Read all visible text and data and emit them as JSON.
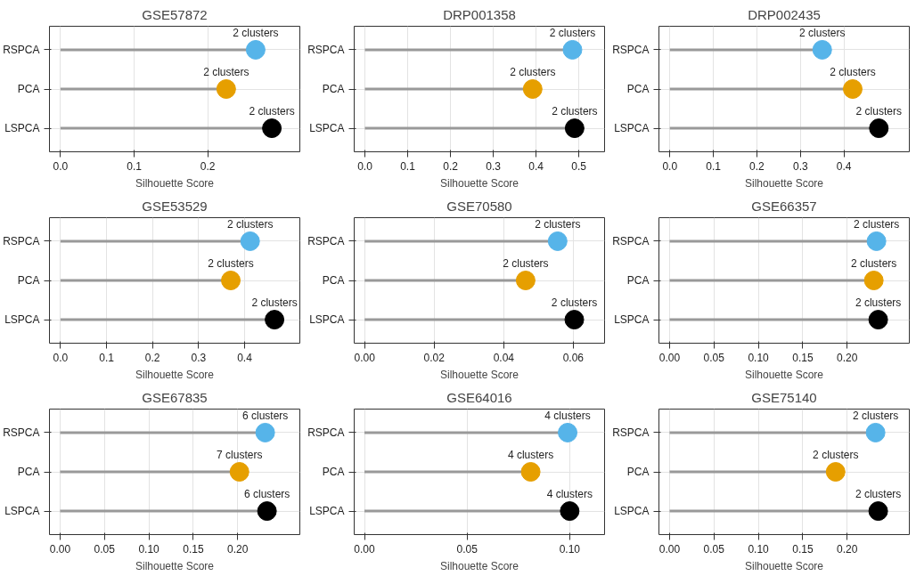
{
  "chart_data": [
    {
      "type": "lollipop",
      "orientation": "horizontal",
      "title": "GSE57872",
      "xlabel": "Silhouette Score",
      "categories": [
        "RSPCA",
        "PCA",
        "LSPCA"
      ],
      "values": [
        0.265,
        0.225,
        0.287
      ],
      "colors": [
        "#56b4e9",
        "#e69f00",
        "#000000"
      ],
      "annotations": [
        {
          "text": "2 clusters",
          "x": 0.265,
          "y": "RSPCA"
        },
        {
          "text": "2 clusters",
          "x": 0.225,
          "y": "PCA"
        },
        {
          "text": "2 clusters",
          "x": 0.287,
          "y": "LSPCA"
        }
      ],
      "xlim": [
        -0.015,
        0.325
      ],
      "xticks": [
        {
          "value": 0,
          "label": "0.0"
        },
        {
          "value": 0.1,
          "label": "0.1"
        },
        {
          "value": 0.2,
          "label": "0.2"
        }
      ],
      "grid": true
    },
    {
      "type": "lollipop",
      "orientation": "horizontal",
      "title": "DRP001358",
      "xlabel": "Silhouette Score",
      "categories": [
        "RSPCA",
        "PCA",
        "LSPCA"
      ],
      "values": [
        0.485,
        0.392,
        0.49
      ],
      "colors": [
        "#56b4e9",
        "#e69f00",
        "#000000"
      ],
      "annotations": [
        {
          "text": "2 clusters",
          "x": 0.485,
          "y": "RSPCA"
        },
        {
          "text": "2 clusters",
          "x": 0.392,
          "y": "PCA"
        },
        {
          "text": "2 clusters",
          "x": 0.49,
          "y": "LSPCA"
        }
      ],
      "xlim": [
        -0.025,
        0.56
      ],
      "xticks": [
        {
          "value": 0,
          "label": "0.0"
        },
        {
          "value": 0.1,
          "label": "0.1"
        },
        {
          "value": 0.2,
          "label": "0.2"
        },
        {
          "value": 0.3,
          "label": "0.3"
        },
        {
          "value": 0.4,
          "label": "0.4"
        },
        {
          "value": 0.5,
          "label": "0.5"
        }
      ],
      "grid": true
    },
    {
      "type": "lollipop",
      "orientation": "horizontal",
      "title": "DRP002435",
      "xlabel": "Silhouette Score",
      "categories": [
        "RSPCA",
        "PCA",
        "LSPCA"
      ],
      "values": [
        0.35,
        0.42,
        0.48
      ],
      "colors": [
        "#56b4e9",
        "#e69f00",
        "#000000"
      ],
      "annotations": [
        {
          "text": "2 clusters",
          "x": 0.35,
          "y": "RSPCA"
        },
        {
          "text": "2 clusters",
          "x": 0.42,
          "y": "PCA"
        },
        {
          "text": "2 clusters",
          "x": 0.48,
          "y": "LSPCA"
        }
      ],
      "xlim": [
        -0.025,
        0.55
      ],
      "xticks": [
        {
          "value": 0,
          "label": "0.0"
        },
        {
          "value": 0.1,
          "label": "0.1"
        },
        {
          "value": 0.2,
          "label": "0.2"
        },
        {
          "value": 0.3,
          "label": "0.3"
        },
        {
          "value": 0.4,
          "label": "0.4"
        }
      ],
      "grid": true
    },
    {
      "type": "lollipop",
      "orientation": "horizontal",
      "title": "GSE53529",
      "xlabel": "Silhouette Score",
      "categories": [
        "RSPCA",
        "PCA",
        "LSPCA"
      ],
      "values": [
        0.412,
        0.37,
        0.465
      ],
      "colors": [
        "#56b4e9",
        "#e69f00",
        "#000000"
      ],
      "annotations": [
        {
          "text": "2 clusters",
          "x": 0.412,
          "y": "RSPCA"
        },
        {
          "text": "2 clusters",
          "x": 0.37,
          "y": "PCA"
        },
        {
          "text": "2 clusters",
          "x": 0.465,
          "y": "LSPCA"
        }
      ],
      "xlim": [
        -0.024,
        0.52
      ],
      "xticks": [
        {
          "value": 0,
          "label": "0.0"
        },
        {
          "value": 0.1,
          "label": "0.1"
        },
        {
          "value": 0.2,
          "label": "0.2"
        },
        {
          "value": 0.3,
          "label": "0.3"
        },
        {
          "value": 0.4,
          "label": "0.4"
        }
      ],
      "grid": true
    },
    {
      "type": "lollipop",
      "orientation": "horizontal",
      "title": "GSE70580",
      "xlabel": "Silhouette Score",
      "categories": [
        "RSPCA",
        "PCA",
        "LSPCA"
      ],
      "values": [
        0.0555,
        0.0463,
        0.0603
      ],
      "colors": [
        "#56b4e9",
        "#e69f00",
        "#000000"
      ],
      "annotations": [
        {
          "text": "2 clusters",
          "x": 0.0555,
          "y": "RSPCA"
        },
        {
          "text": "2 clusters",
          "x": 0.0463,
          "y": "PCA"
        },
        {
          "text": "2 clusters",
          "x": 0.0603,
          "y": "LSPCA"
        }
      ],
      "xlim": [
        -0.003,
        0.069
      ],
      "xticks": [
        {
          "value": 0,
          "label": "0.00"
        },
        {
          "value": 0.02,
          "label": "0.02"
        },
        {
          "value": 0.04,
          "label": "0.04"
        },
        {
          "value": 0.06,
          "label": "0.06"
        }
      ],
      "grid": true
    },
    {
      "type": "lollipop",
      "orientation": "horizontal",
      "title": "GSE66357",
      "xlabel": "Silhouette Score",
      "categories": [
        "RSPCA",
        "PCA",
        "LSPCA"
      ],
      "values": [
        0.233,
        0.23,
        0.235
      ],
      "colors": [
        "#56b4e9",
        "#e69f00",
        "#000000"
      ],
      "annotations": [
        {
          "text": "2 clusters",
          "x": 0.233,
          "y": "RSPCA"
        },
        {
          "text": "2 clusters",
          "x": 0.23,
          "y": "PCA"
        },
        {
          "text": "2 clusters",
          "x": 0.235,
          "y": "LSPCA"
        }
      ],
      "xlim": [
        -0.012,
        0.27
      ],
      "xticks": [
        {
          "value": 0,
          "label": "0.00"
        },
        {
          "value": 0.05,
          "label": "0.05"
        },
        {
          "value": 0.1,
          "label": "0.10"
        },
        {
          "value": 0.15,
          "label": "0.15"
        },
        {
          "value": 0.2,
          "label": "0.20"
        }
      ],
      "grid": true
    },
    {
      "type": "lollipop",
      "orientation": "horizontal",
      "title": "GSE67835",
      "xlabel": "Silhouette Score",
      "categories": [
        "RSPCA",
        "PCA",
        "LSPCA"
      ],
      "values": [
        0.231,
        0.202,
        0.233
      ],
      "colors": [
        "#56b4e9",
        "#e69f00",
        "#000000"
      ],
      "annotations": [
        {
          "text": "6 clusters",
          "x": 0.231,
          "y": "RSPCA"
        },
        {
          "text": "7 clusters",
          "x": 0.202,
          "y": "PCA"
        },
        {
          "text": "6 clusters",
          "x": 0.233,
          "y": "LSPCA"
        }
      ],
      "xlim": [
        -0.012,
        0.27
      ],
      "xticks": [
        {
          "value": 0,
          "label": "0.00"
        },
        {
          "value": 0.05,
          "label": "0.05"
        },
        {
          "value": 0.1,
          "label": "0.10"
        },
        {
          "value": 0.15,
          "label": "0.15"
        },
        {
          "value": 0.2,
          "label": "0.20"
        }
      ],
      "grid": true
    },
    {
      "type": "lollipop",
      "orientation": "horizontal",
      "title": "GSE64016",
      "xlabel": "Silhouette Score",
      "categories": [
        "RSPCA",
        "PCA",
        "LSPCA"
      ],
      "values": [
        0.099,
        0.081,
        0.1
      ],
      "colors": [
        "#56b4e9",
        "#e69f00",
        "#000000"
      ],
      "annotations": [
        {
          "text": "4 clusters",
          "x": 0.099,
          "y": "RSPCA"
        },
        {
          "text": "4 clusters",
          "x": 0.081,
          "y": "PCA"
        },
        {
          "text": "4 clusters",
          "x": 0.1,
          "y": "LSPCA"
        }
      ],
      "xlim": [
        -0.005,
        0.117
      ],
      "xticks": [
        {
          "value": 0,
          "label": "0.00"
        },
        {
          "value": 0.05,
          "label": "0.05"
        },
        {
          "value": 0.1,
          "label": "0.10"
        }
      ],
      "grid": true
    },
    {
      "type": "lollipop",
      "orientation": "horizontal",
      "title": "GSE75140",
      "xlabel": "Silhouette Score",
      "categories": [
        "RSPCA",
        "PCA",
        "LSPCA"
      ],
      "values": [
        0.232,
        0.187,
        0.235
      ],
      "colors": [
        "#56b4e9",
        "#e69f00",
        "#000000"
      ],
      "annotations": [
        {
          "text": "2 clusters",
          "x": 0.232,
          "y": "RSPCA"
        },
        {
          "text": "2 clusters",
          "x": 0.187,
          "y": "PCA"
        },
        {
          "text": "2 clusters",
          "x": 0.235,
          "y": "LSPCA"
        }
      ],
      "xlim": [
        -0.012,
        0.27
      ],
      "xticks": [
        {
          "value": 0,
          "label": "0.00"
        },
        {
          "value": 0.05,
          "label": "0.05"
        },
        {
          "value": 0.1,
          "label": "0.10"
        },
        {
          "value": 0.15,
          "label": "0.15"
        },
        {
          "value": 0.2,
          "label": "0.20"
        }
      ],
      "grid": true
    }
  ]
}
